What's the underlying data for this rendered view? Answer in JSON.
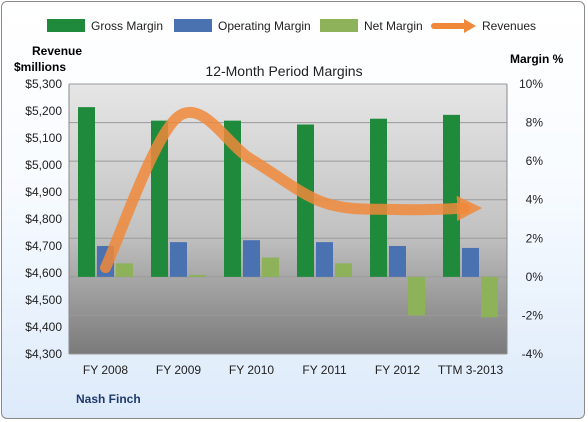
{
  "chart_data": {
    "type": "bar",
    "title": "12-Month Period Margins",
    "categories": [
      "FY 2008",
      "FY 2009",
      "FY 2010",
      "FY 2011",
      "FY 2012",
      "TTM 3-2013"
    ],
    "series": [
      {
        "name": "Gross Margin",
        "type": "bar",
        "axis": "right",
        "color": "#1f8a3c",
        "values": [
          8.8,
          8.1,
          8.1,
          7.9,
          8.2,
          8.4
        ]
      },
      {
        "name": "Operating Margin",
        "type": "bar",
        "axis": "right",
        "color": "#4a72b0",
        "values": [
          1.6,
          1.8,
          1.9,
          1.8,
          1.6,
          1.5
        ]
      },
      {
        "name": "Net Margin",
        "type": "bar",
        "axis": "right",
        "color": "#8db25a",
        "values": [
          0.7,
          0.1,
          1.0,
          0.7,
          -2.0,
          -2.1
        ]
      },
      {
        "name": "Revenues",
        "type": "line",
        "axis": "left",
        "color": "#f0883a",
        "values": [
          4620,
          5180,
          5020,
          4860,
          4835,
          4840
        ]
      }
    ],
    "y_left": {
      "label": "Revenue $millions",
      "range": [
        4300,
        5300
      ],
      "ticks": [
        "$4,300",
        "$4,400",
        "$4,500",
        "$4,600",
        "$4,700",
        "$4,800",
        "$4,900",
        "$5,000",
        "$5,100",
        "$5,200",
        "$5,300"
      ]
    },
    "y_right": {
      "label": "Margin %",
      "range": [
        -4,
        10
      ],
      "ticks": [
        "-4%",
        "-2%",
        "0%",
        "2%",
        "4%",
        "6%",
        "8%",
        "10%"
      ]
    },
    "grid": true,
    "legend_position": "top"
  },
  "labels": {
    "y_left_title_line1": "Revenue",
    "y_left_title_line2": "$millions",
    "y_right_title": "Margin %",
    "footer": "Nash Finch"
  }
}
